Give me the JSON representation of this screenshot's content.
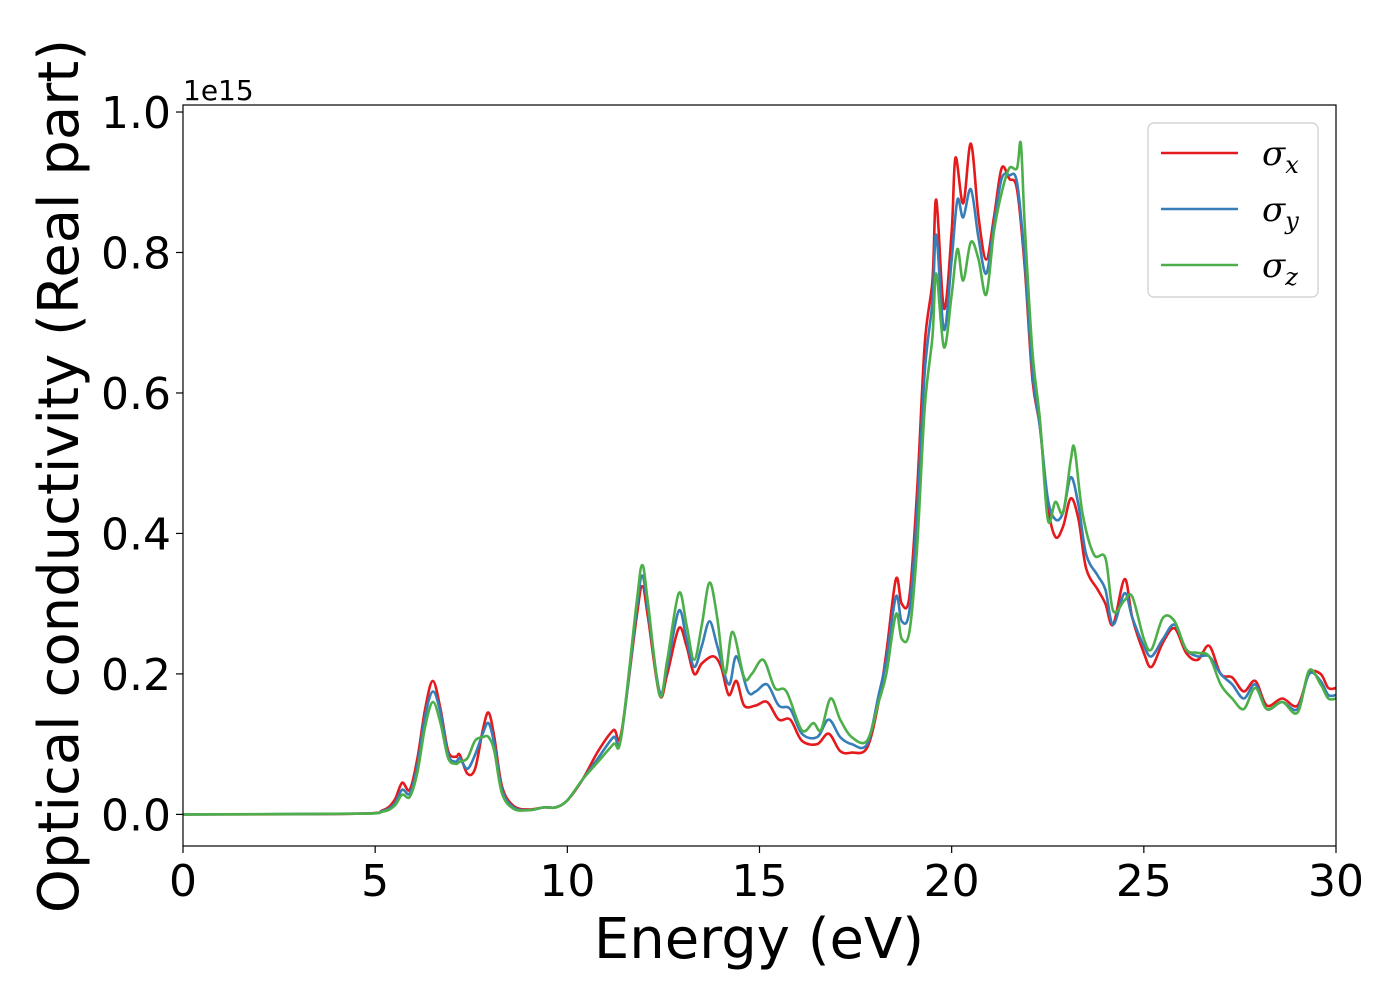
{
  "chart_data": {
    "type": "line",
    "title": "",
    "xlabel": "Energy (eV)",
    "ylabel": "Optical conductivity (Real part)",
    "y_offset_label": "1e15",
    "xlim": [
      0,
      30
    ],
    "ylim": [
      -0.045,
      1.01
    ],
    "x_ticks": [
      0,
      5,
      10,
      15,
      20,
      25,
      30
    ],
    "x_tick_labels": [
      "0",
      "5",
      "10",
      "15",
      "20",
      "25",
      "30"
    ],
    "y_ticks": [
      0.0,
      0.2,
      0.4,
      0.6,
      0.8,
      1.0
    ],
    "y_tick_labels": [
      "0.0",
      "0.2",
      "0.4",
      "0.6",
      "0.8",
      "1.0"
    ],
    "grid": false,
    "legend_position": "top-right",
    "series": [
      {
        "name": "x",
        "symbol": "σ",
        "color": "#e41a1c",
        "points": [
          [
            0,
            0.0
          ],
          [
            4.5,
            0.001
          ],
          [
            5.2,
            0.006
          ],
          [
            5.5,
            0.02
          ],
          [
            5.7,
            0.045
          ],
          [
            5.9,
            0.035
          ],
          [
            6.1,
            0.08
          ],
          [
            6.3,
            0.15
          ],
          [
            6.5,
            0.19
          ],
          [
            6.7,
            0.15
          ],
          [
            6.9,
            0.09
          ],
          [
            7.1,
            0.082
          ],
          [
            7.2,
            0.085
          ],
          [
            7.4,
            0.058
          ],
          [
            7.6,
            0.065
          ],
          [
            7.8,
            0.12
          ],
          [
            7.95,
            0.145
          ],
          [
            8.1,
            0.11
          ],
          [
            8.3,
            0.04
          ],
          [
            8.6,
            0.012
          ],
          [
            9.0,
            0.007
          ],
          [
            9.4,
            0.01
          ],
          [
            9.7,
            0.01
          ],
          [
            10.0,
            0.02
          ],
          [
            10.4,
            0.05
          ],
          [
            10.8,
            0.09
          ],
          [
            11.2,
            0.12
          ],
          [
            11.4,
            0.115
          ],
          [
            11.8,
            0.28
          ],
          [
            11.95,
            0.325
          ],
          [
            12.1,
            0.28
          ],
          [
            12.4,
            0.17
          ],
          [
            12.6,
            0.2
          ],
          [
            12.9,
            0.265
          ],
          [
            13.1,
            0.24
          ],
          [
            13.3,
            0.2
          ],
          [
            13.5,
            0.215
          ],
          [
            13.8,
            0.225
          ],
          [
            14.0,
            0.21
          ],
          [
            14.2,
            0.17
          ],
          [
            14.4,
            0.19
          ],
          [
            14.6,
            0.155
          ],
          [
            14.9,
            0.155
          ],
          [
            15.2,
            0.16
          ],
          [
            15.5,
            0.135
          ],
          [
            15.8,
            0.135
          ],
          [
            16.1,
            0.105
          ],
          [
            16.5,
            0.1
          ],
          [
            16.8,
            0.115
          ],
          [
            17.1,
            0.09
          ],
          [
            17.4,
            0.088
          ],
          [
            17.8,
            0.095
          ],
          [
            18.1,
            0.16
          ],
          [
            18.3,
            0.23
          ],
          [
            18.55,
            0.335
          ],
          [
            18.7,
            0.3
          ],
          [
            18.9,
            0.31
          ],
          [
            19.1,
            0.46
          ],
          [
            19.3,
            0.67
          ],
          [
            19.5,
            0.76
          ],
          [
            19.6,
            0.875
          ],
          [
            19.8,
            0.72
          ],
          [
            20.0,
            0.83
          ],
          [
            20.1,
            0.935
          ],
          [
            20.3,
            0.87
          ],
          [
            20.5,
            0.955
          ],
          [
            20.7,
            0.85
          ],
          [
            20.9,
            0.79
          ],
          [
            21.1,
            0.85
          ],
          [
            21.3,
            0.92
          ],
          [
            21.5,
            0.905
          ],
          [
            21.7,
            0.89
          ],
          [
            21.9,
            0.78
          ],
          [
            22.1,
            0.62
          ],
          [
            22.3,
            0.55
          ],
          [
            22.5,
            0.44
          ],
          [
            22.7,
            0.395
          ],
          [
            22.9,
            0.41
          ],
          [
            23.1,
            0.45
          ],
          [
            23.3,
            0.42
          ],
          [
            23.5,
            0.35
          ],
          [
            23.8,
            0.32
          ],
          [
            24.0,
            0.3
          ],
          [
            24.2,
            0.27
          ],
          [
            24.5,
            0.335
          ],
          [
            24.7,
            0.28
          ],
          [
            25.0,
            0.23
          ],
          [
            25.2,
            0.21
          ],
          [
            25.5,
            0.245
          ],
          [
            25.8,
            0.265
          ],
          [
            26.1,
            0.23
          ],
          [
            26.4,
            0.22
          ],
          [
            26.7,
            0.24
          ],
          [
            27.0,
            0.2
          ],
          [
            27.3,
            0.195
          ],
          [
            27.6,
            0.175
          ],
          [
            27.9,
            0.19
          ],
          [
            28.2,
            0.155
          ],
          [
            28.6,
            0.165
          ],
          [
            29.0,
            0.155
          ],
          [
            29.3,
            0.2
          ],
          [
            29.6,
            0.2
          ],
          [
            29.8,
            0.18
          ],
          [
            30.0,
            0.18
          ]
        ]
      },
      {
        "name": "y",
        "symbol": "σ",
        "color": "#377eb8",
        "points": [
          [
            0,
            0.0
          ],
          [
            4.5,
            0.001
          ],
          [
            5.2,
            0.005
          ],
          [
            5.5,
            0.015
          ],
          [
            5.7,
            0.035
          ],
          [
            5.9,
            0.03
          ],
          [
            6.1,
            0.07
          ],
          [
            6.3,
            0.14
          ],
          [
            6.5,
            0.175
          ],
          [
            6.7,
            0.145
          ],
          [
            6.9,
            0.085
          ],
          [
            7.1,
            0.075
          ],
          [
            7.2,
            0.08
          ],
          [
            7.4,
            0.065
          ],
          [
            7.6,
            0.085
          ],
          [
            7.8,
            0.115
          ],
          [
            7.95,
            0.13
          ],
          [
            8.1,
            0.1
          ],
          [
            8.3,
            0.035
          ],
          [
            8.6,
            0.01
          ],
          [
            9.0,
            0.006
          ],
          [
            9.4,
            0.01
          ],
          [
            9.7,
            0.01
          ],
          [
            10.0,
            0.02
          ],
          [
            10.4,
            0.05
          ],
          [
            10.8,
            0.08
          ],
          [
            11.2,
            0.11
          ],
          [
            11.4,
            0.11
          ],
          [
            11.8,
            0.29
          ],
          [
            11.95,
            0.34
          ],
          [
            12.1,
            0.29
          ],
          [
            12.4,
            0.175
          ],
          [
            12.6,
            0.21
          ],
          [
            12.9,
            0.29
          ],
          [
            13.1,
            0.25
          ],
          [
            13.3,
            0.21
          ],
          [
            13.5,
            0.24
          ],
          [
            13.7,
            0.275
          ],
          [
            13.9,
            0.24
          ],
          [
            14.2,
            0.185
          ],
          [
            14.4,
            0.225
          ],
          [
            14.7,
            0.175
          ],
          [
            14.9,
            0.175
          ],
          [
            15.2,
            0.185
          ],
          [
            15.5,
            0.155
          ],
          [
            15.8,
            0.15
          ],
          [
            16.1,
            0.115
          ],
          [
            16.5,
            0.11
          ],
          [
            16.8,
            0.135
          ],
          [
            17.1,
            0.11
          ],
          [
            17.4,
            0.1
          ],
          [
            17.8,
            0.1
          ],
          [
            18.1,
            0.17
          ],
          [
            18.3,
            0.22
          ],
          [
            18.55,
            0.31
          ],
          [
            18.7,
            0.275
          ],
          [
            18.9,
            0.29
          ],
          [
            19.1,
            0.43
          ],
          [
            19.3,
            0.63
          ],
          [
            19.5,
            0.73
          ],
          [
            19.6,
            0.825
          ],
          [
            19.8,
            0.69
          ],
          [
            20.0,
            0.79
          ],
          [
            20.15,
            0.875
          ],
          [
            20.3,
            0.85
          ],
          [
            20.5,
            0.89
          ],
          [
            20.7,
            0.82
          ],
          [
            20.9,
            0.77
          ],
          [
            21.1,
            0.84
          ],
          [
            21.3,
            0.905
          ],
          [
            21.5,
            0.91
          ],
          [
            21.7,
            0.9
          ],
          [
            21.9,
            0.79
          ],
          [
            22.1,
            0.63
          ],
          [
            22.3,
            0.55
          ],
          [
            22.5,
            0.45
          ],
          [
            22.7,
            0.42
          ],
          [
            22.9,
            0.43
          ],
          [
            23.1,
            0.48
          ],
          [
            23.3,
            0.44
          ],
          [
            23.5,
            0.37
          ],
          [
            23.8,
            0.34
          ],
          [
            24.0,
            0.32
          ],
          [
            24.2,
            0.27
          ],
          [
            24.5,
            0.315
          ],
          [
            24.7,
            0.28
          ],
          [
            25.0,
            0.24
          ],
          [
            25.2,
            0.225
          ],
          [
            25.5,
            0.25
          ],
          [
            25.8,
            0.27
          ],
          [
            26.1,
            0.235
          ],
          [
            26.4,
            0.225
          ],
          [
            26.7,
            0.225
          ],
          [
            27.0,
            0.2
          ],
          [
            27.3,
            0.185
          ],
          [
            27.6,
            0.165
          ],
          [
            27.9,
            0.185
          ],
          [
            28.2,
            0.15
          ],
          [
            28.6,
            0.16
          ],
          [
            29.0,
            0.15
          ],
          [
            29.3,
            0.2
          ],
          [
            29.6,
            0.19
          ],
          [
            29.8,
            0.17
          ],
          [
            30.0,
            0.17
          ]
        ]
      },
      {
        "name": "z",
        "symbol": "σ",
        "color": "#4daf4a",
        "points": [
          [
            0,
            0.0
          ],
          [
            4.5,
            0.001
          ],
          [
            5.2,
            0.004
          ],
          [
            5.5,
            0.012
          ],
          [
            5.7,
            0.028
          ],
          [
            5.9,
            0.025
          ],
          [
            6.1,
            0.06
          ],
          [
            6.3,
            0.125
          ],
          [
            6.5,
            0.16
          ],
          [
            6.7,
            0.13
          ],
          [
            6.9,
            0.08
          ],
          [
            7.1,
            0.072
          ],
          [
            7.2,
            0.075
          ],
          [
            7.4,
            0.08
          ],
          [
            7.6,
            0.105
          ],
          [
            7.8,
            0.11
          ],
          [
            7.95,
            0.11
          ],
          [
            8.1,
            0.09
          ],
          [
            8.3,
            0.03
          ],
          [
            8.6,
            0.008
          ],
          [
            9.0,
            0.006
          ],
          [
            9.4,
            0.01
          ],
          [
            9.7,
            0.01
          ],
          [
            10.0,
            0.02
          ],
          [
            10.4,
            0.05
          ],
          [
            10.8,
            0.075
          ],
          [
            11.2,
            0.1
          ],
          [
            11.4,
            0.11
          ],
          [
            11.8,
            0.3
          ],
          [
            11.95,
            0.355
          ],
          [
            12.1,
            0.3
          ],
          [
            12.4,
            0.17
          ],
          [
            12.6,
            0.22
          ],
          [
            12.9,
            0.315
          ],
          [
            13.1,
            0.27
          ],
          [
            13.3,
            0.22
          ],
          [
            13.5,
            0.27
          ],
          [
            13.7,
            0.33
          ],
          [
            13.9,
            0.28
          ],
          [
            14.1,
            0.2
          ],
          [
            14.3,
            0.26
          ],
          [
            14.6,
            0.195
          ],
          [
            14.8,
            0.2
          ],
          [
            15.1,
            0.22
          ],
          [
            15.4,
            0.18
          ],
          [
            15.7,
            0.175
          ],
          [
            16.1,
            0.12
          ],
          [
            16.4,
            0.13
          ],
          [
            16.6,
            0.12
          ],
          [
            16.85,
            0.165
          ],
          [
            17.1,
            0.135
          ],
          [
            17.4,
            0.11
          ],
          [
            17.8,
            0.105
          ],
          [
            18.1,
            0.16
          ],
          [
            18.3,
            0.2
          ],
          [
            18.55,
            0.285
          ],
          [
            18.7,
            0.25
          ],
          [
            18.9,
            0.26
          ],
          [
            19.1,
            0.38
          ],
          [
            19.3,
            0.58
          ],
          [
            19.5,
            0.68
          ],
          [
            19.6,
            0.77
          ],
          [
            19.8,
            0.665
          ],
          [
            20.0,
            0.74
          ],
          [
            20.15,
            0.805
          ],
          [
            20.3,
            0.76
          ],
          [
            20.5,
            0.815
          ],
          [
            20.7,
            0.79
          ],
          [
            20.9,
            0.74
          ],
          [
            21.1,
            0.83
          ],
          [
            21.3,
            0.885
          ],
          [
            21.5,
            0.92
          ],
          [
            21.7,
            0.92
          ],
          [
            21.8,
            0.955
          ],
          [
            21.9,
            0.84
          ],
          [
            22.1,
            0.66
          ],
          [
            22.3,
            0.56
          ],
          [
            22.5,
            0.42
          ],
          [
            22.7,
            0.445
          ],
          [
            22.9,
            0.43
          ],
          [
            23.1,
            0.505
          ],
          [
            23.2,
            0.52
          ],
          [
            23.4,
            0.43
          ],
          [
            23.7,
            0.37
          ],
          [
            24.0,
            0.365
          ],
          [
            24.2,
            0.29
          ],
          [
            24.5,
            0.305
          ],
          [
            24.7,
            0.31
          ],
          [
            25.0,
            0.25
          ],
          [
            25.2,
            0.235
          ],
          [
            25.5,
            0.28
          ],
          [
            25.8,
            0.275
          ],
          [
            26.1,
            0.235
          ],
          [
            26.4,
            0.23
          ],
          [
            26.7,
            0.225
          ],
          [
            27.0,
            0.185
          ],
          [
            27.3,
            0.165
          ],
          [
            27.6,
            0.15
          ],
          [
            27.9,
            0.18
          ],
          [
            28.2,
            0.15
          ],
          [
            28.6,
            0.16
          ],
          [
            29.0,
            0.145
          ],
          [
            29.3,
            0.205
          ],
          [
            29.6,
            0.185
          ],
          [
            29.8,
            0.165
          ],
          [
            30.0,
            0.165
          ]
        ]
      }
    ]
  }
}
